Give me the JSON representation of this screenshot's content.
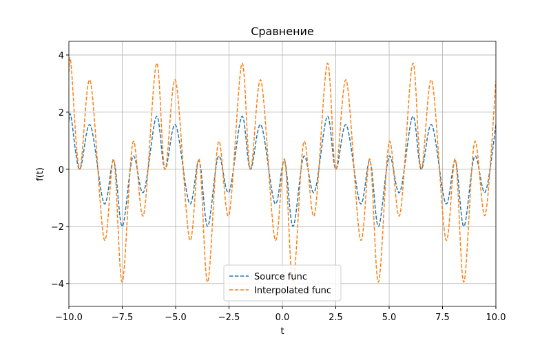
{
  "chart_data": {
    "type": "line",
    "title": "Сравнение",
    "xlabel": "t",
    "ylabel": "f(t)",
    "x": [
      -10,
      -9.9,
      -9.5,
      -9.0,
      -8.35,
      -7.9,
      -7.5,
      -7.0,
      -6.5,
      -5.9,
      -5.5,
      -5.0,
      -4.35,
      -3.9,
      -3.5,
      -3.0,
      -2.5,
      -1.9,
      -1.5,
      -1.0,
      -0.35,
      0.1,
      0.5,
      1.0,
      1.5,
      2.1,
      2.5,
      3.0,
      3.65,
      4.1,
      4.5,
      5.0,
      5.5,
      6.1,
      6.5,
      7.0,
      7.65,
      8.1,
      8.5,
      9.0,
      9.5,
      10
    ],
    "series": [
      {
        "name": "Source func",
        "color": "#1f77b4",
        "dashed": true,
        "values": [
          1.7,
          1.85,
          0,
          1.55,
          -1.2,
          0.3,
          -2.0,
          0.45,
          -0.8,
          1.85,
          0,
          1.55,
          -1.2,
          0.3,
          -2.0,
          0.45,
          -0.8,
          1.85,
          0,
          1.55,
          -1.2,
          0.3,
          -2.0,
          0.45,
          -0.8,
          1.85,
          0,
          1.55,
          -1.2,
          0.3,
          -2.0,
          0.45,
          -0.8,
          1.85,
          0,
          1.55,
          -1.2,
          0.3,
          -2.0,
          0.45,
          -0.8,
          1.55
        ]
      },
      {
        "name": "Interpolated func",
        "color": "#ff7f0e",
        "dashed": true,
        "values": [
          3.4,
          3.7,
          0,
          3.1,
          -2.45,
          0.35,
          -3.95,
          0.95,
          -1.6,
          3.7,
          0,
          3.1,
          -2.45,
          0.35,
          -3.95,
          0.95,
          -1.6,
          3.7,
          0,
          3.1,
          -2.45,
          0.35,
          -3.95,
          0.95,
          -1.6,
          3.7,
          0,
          3.1,
          -2.45,
          0.35,
          -3.95,
          0.95,
          -1.6,
          3.7,
          0,
          3.1,
          -2.45,
          0.35,
          -3.95,
          0.95,
          -1.6,
          3.1
        ]
      }
    ],
    "xlim": [
      -10,
      10
    ],
    "xticks": [
      {
        "value": -10,
        "label": "−10.0"
      },
      {
        "value": -7.5,
        "label": "−7.5"
      },
      {
        "value": -5,
        "label": "−5.0"
      },
      {
        "value": -2.5,
        "label": "−2.5"
      },
      {
        "value": 0,
        "label": "0.0"
      },
      {
        "value": 2.5,
        "label": "2.5"
      },
      {
        "value": 5,
        "label": "5.0"
      },
      {
        "value": 7.5,
        "label": "7.5"
      },
      {
        "value": 10,
        "label": "10.0"
      }
    ],
    "ylim": [
      -4.8,
      4.48
    ],
    "yticks": [
      {
        "value": -4,
        "label": "−4"
      },
      {
        "value": -2,
        "label": "−2"
      },
      0,
      2,
      4
    ],
    "grid": true,
    "legend": "lower center"
  }
}
